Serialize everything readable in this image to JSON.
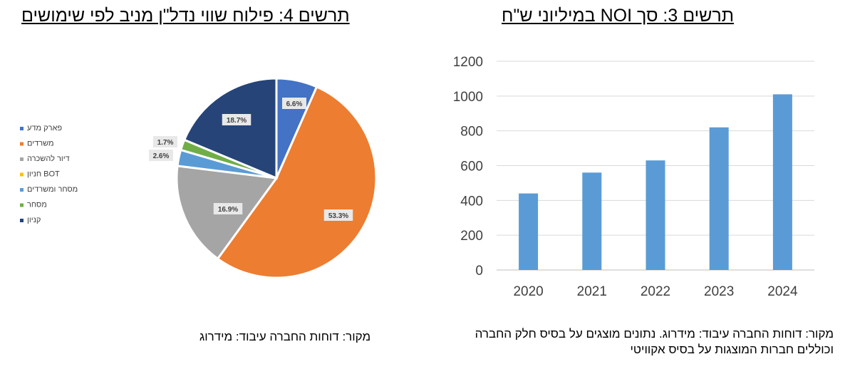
{
  "left_chart": {
    "title": "תרשים 4: פילוח שווי נדל\"ן מניב לפי שימושים",
    "source": "מקור: דוחות החברה עיבוד: מידרוג"
  },
  "right_chart": {
    "title": "תרשים 3: סך NOI במיליוני ש\"ח",
    "source_lines": [
      "מקור: דוחות החברה עיבוד: מידרוג.  נתונים מוצגים על בסיס חלק החברה",
      "וכוללים חברות המוצגות על בסיס אקוויטי"
    ]
  },
  "chart_data": [
    {
      "type": "pie",
      "title": "תרשים 4: פילוח שווי נדל\"ן מניב לפי שימושים",
      "legend_position": "left",
      "slices": [
        {
          "label": "פארק מדע",
          "value": 6.6,
          "display": "6.6%",
          "color": "#4472C4"
        },
        {
          "label": "משרדים",
          "value": 53.3,
          "display": "53.3%",
          "color": "#ED7D31"
        },
        {
          "label": "דיור להשכרה",
          "value": 16.9,
          "display": "16.9%",
          "color": "#A5A5A5"
        },
        {
          "label": "חניון BOT",
          "value": 0,
          "display": "",
          "color": "#FFC000"
        },
        {
          "label": "מסחר ומשרדים",
          "value": 2.6,
          "display": "2.6%",
          "color": "#5B9BD5"
        },
        {
          "label": "מסחר",
          "value": 1.7,
          "display": "1.7%",
          "color": "#70AD47"
        },
        {
          "label": "קניון",
          "value": 18.7,
          "display": "18.7%",
          "color": "#264478"
        }
      ]
    },
    {
      "type": "bar",
      "title": "תרשים 3: סך NOI במיליוני ש\"ח",
      "categories": [
        "2020",
        "2021",
        "2022",
        "2023",
        "2024"
      ],
      "values": [
        440,
        560,
        630,
        820,
        1010
      ],
      "ylim": [
        0,
        1200
      ],
      "yticks": [
        0,
        200,
        400,
        600,
        800,
        1000,
        1200
      ],
      "grid": true,
      "bar_color": "#5B9BD5"
    }
  ]
}
